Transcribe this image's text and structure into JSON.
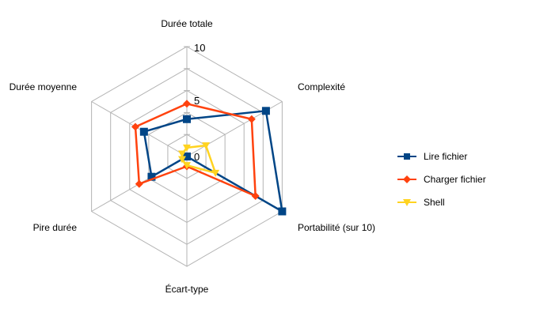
{
  "chart_data": {
    "type": "radar",
    "axes": [
      "Durée totale",
      "Complexité",
      "Portabilité (sur 10)",
      "Écart-type",
      "Pire durée",
      "Durée moyenne"
    ],
    "range": [
      0,
      10
    ],
    "tick_labels": [
      "0",
      "5",
      "10"
    ],
    "grid": true,
    "legend_position": "right",
    "series": [
      {
        "name": "Lire fichier",
        "color": "#004586",
        "marker": "square",
        "values": [
          3.4,
          8.3,
          10,
          0,
          3.7,
          4.5
        ]
      },
      {
        "name": "Charger fichier",
        "color": "#ff420e",
        "marker": "diamond",
        "values": [
          4.8,
          6.8,
          7.2,
          0.9,
          5.0,
          5.4
        ]
      },
      {
        "name": "Shell",
        "color": "#ffd320",
        "marker": "triangle-down",
        "values": [
          0.8,
          2.0,
          3.0,
          0.8,
          0.5,
          0.5
        ]
      }
    ]
  }
}
